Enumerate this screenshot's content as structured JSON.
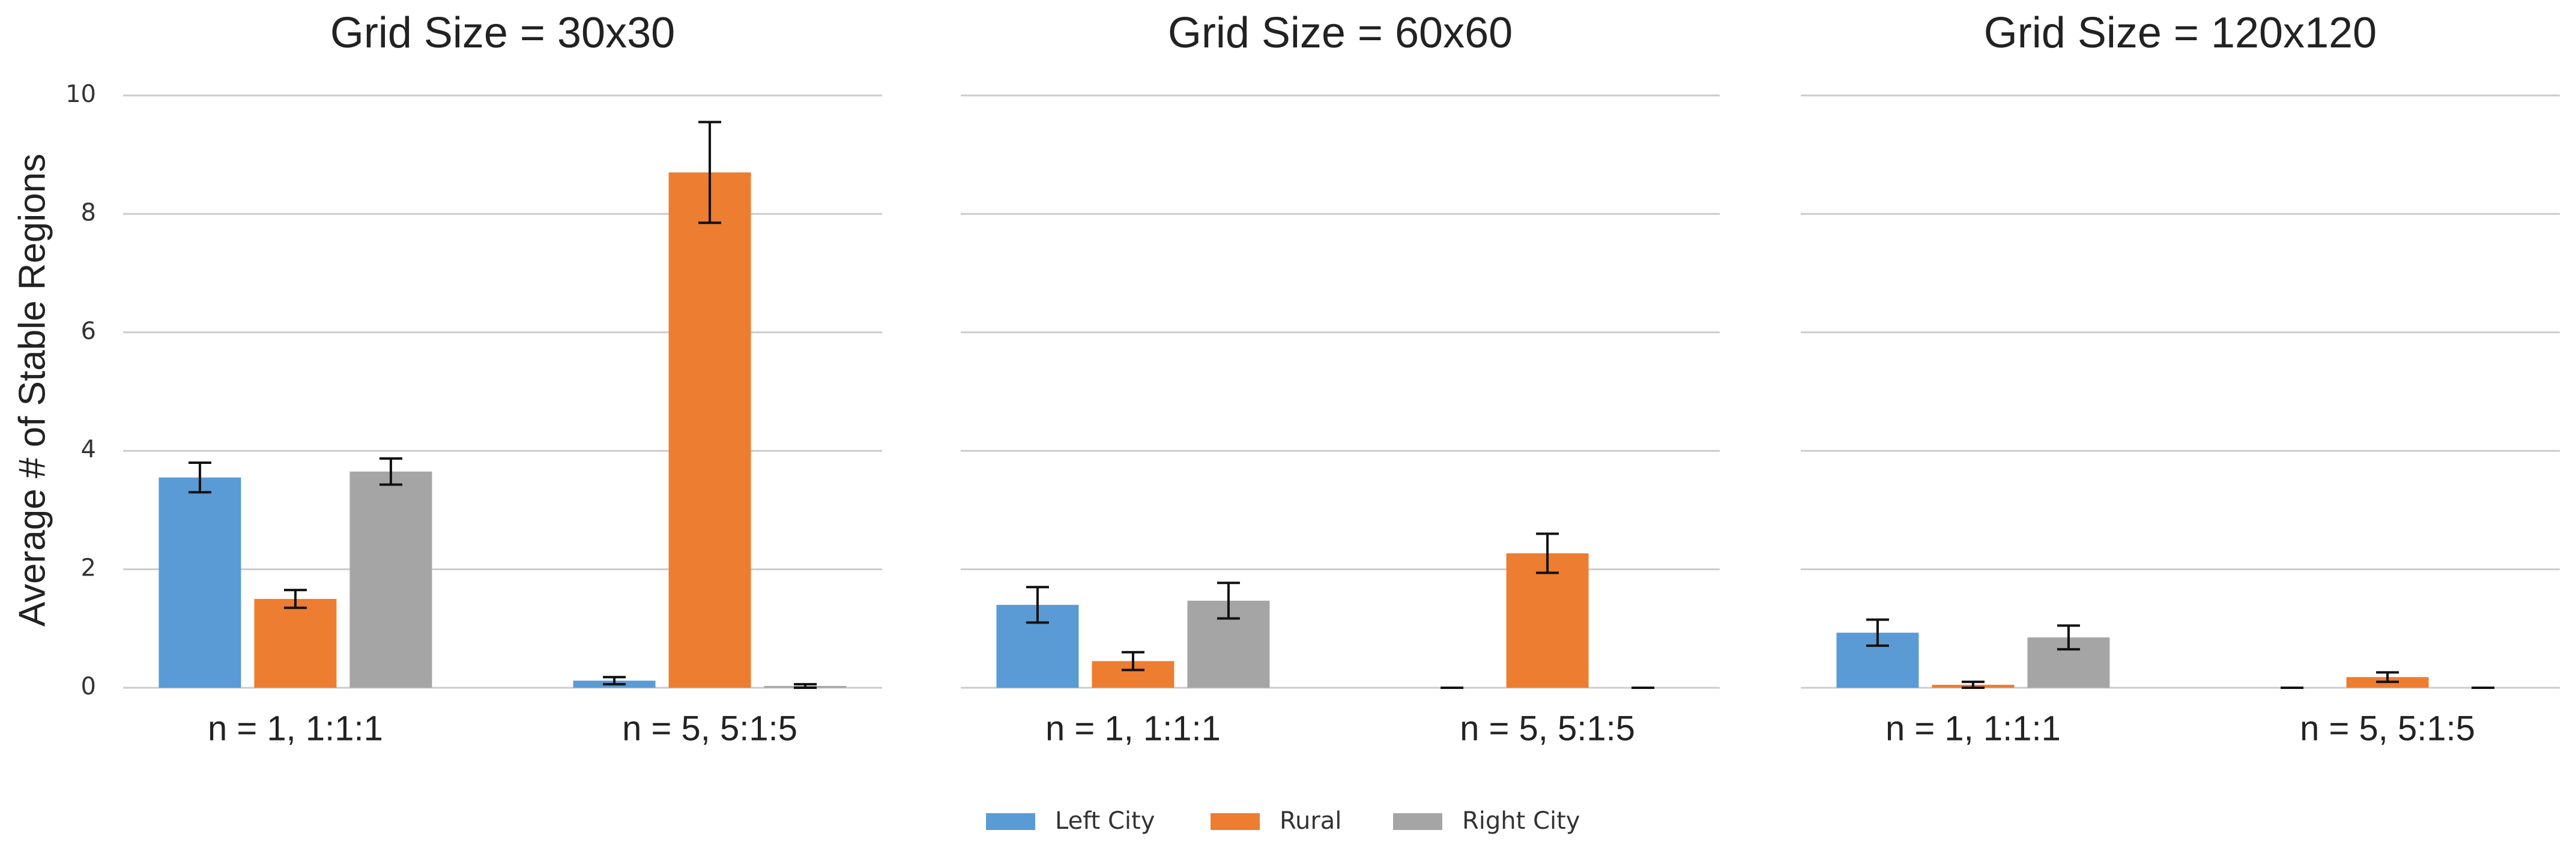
{
  "chart_data": [
    {
      "type": "bar",
      "title": "Grid Size = 30x30",
      "ylabel": "Average # of Stable Regions",
      "categories": [
        "n = 1, 1:1:1",
        "n = 5, 5:1:5"
      ],
      "series": [
        {
          "name": "Left City",
          "color": "#5b9bd5",
          "values": [
            3.55,
            0.12
          ],
          "errors": [
            0.25,
            0.06
          ]
        },
        {
          "name": "Rural",
          "color": "#ed7d31",
          "values": [
            1.5,
            8.7
          ],
          "errors": [
            0.15,
            0.85
          ]
        },
        {
          "name": "Right City",
          "color": "#a5a5a5",
          "values": [
            3.65,
            0.03
          ],
          "errors": [
            0.22,
            0.03
          ]
        }
      ],
      "ylim": [
        0,
        10
      ],
      "yticks": [
        0,
        2,
        4,
        6,
        8,
        10
      ],
      "grid": true
    },
    {
      "type": "bar",
      "title": "Grid Size = 60x60",
      "categories": [
        "n = 1, 1:1:1",
        "n = 5, 5:1:5"
      ],
      "series": [
        {
          "name": "Left City",
          "color": "#5b9bd5",
          "values": [
            1.4,
            0
          ],
          "errors": [
            0.3,
            0
          ]
        },
        {
          "name": "Rural",
          "color": "#ed7d31",
          "values": [
            0.45,
            2.27
          ],
          "errors": [
            0.15,
            0.33
          ]
        },
        {
          "name": "Right City",
          "color": "#a5a5a5",
          "values": [
            1.47,
            0
          ],
          "errors": [
            0.3,
            0
          ]
        }
      ],
      "ylim": [
        0,
        10
      ],
      "yticks": [
        0,
        2,
        4,
        6,
        8,
        10
      ],
      "grid": true
    },
    {
      "type": "bar",
      "title": "Grid Size = 120x120",
      "categories": [
        "n = 1, 1:1:1",
        "n = 5, 5:1:5"
      ],
      "series": [
        {
          "name": "Left City",
          "color": "#5b9bd5",
          "values": [
            0.93,
            0
          ],
          "errors": [
            0.22,
            0
          ]
        },
        {
          "name": "Rural",
          "color": "#ed7d31",
          "values": [
            0.05,
            0.18
          ],
          "errors": [
            0.05,
            0.08
          ]
        },
        {
          "name": "Right City",
          "color": "#a5a5a5",
          "values": [
            0.85,
            0
          ],
          "errors": [
            0.2,
            0
          ]
        }
      ],
      "ylim": [
        0,
        10
      ],
      "yticks": [
        0,
        2,
        4,
        6,
        8,
        10
      ],
      "grid": true
    }
  ]
}
